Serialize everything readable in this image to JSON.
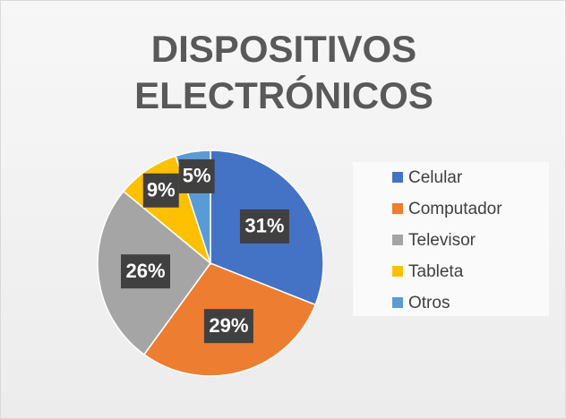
{
  "chart_data": {
    "type": "pie",
    "title": "DISPOSITIVOS ELECTRÓNICOS",
    "categories": [
      "Celular",
      "Computador",
      "Televisor",
      "Tableta",
      "Otros"
    ],
    "values": [
      31,
      29,
      26,
      9,
      5
    ],
    "value_labels": [
      "31%",
      "29%",
      "26%",
      "9%",
      "5%"
    ],
    "colors": [
      "#4472c4",
      "#ed7d31",
      "#a5a5a5",
      "#ffc000",
      "#5b9bd5"
    ],
    "legend": "right"
  }
}
